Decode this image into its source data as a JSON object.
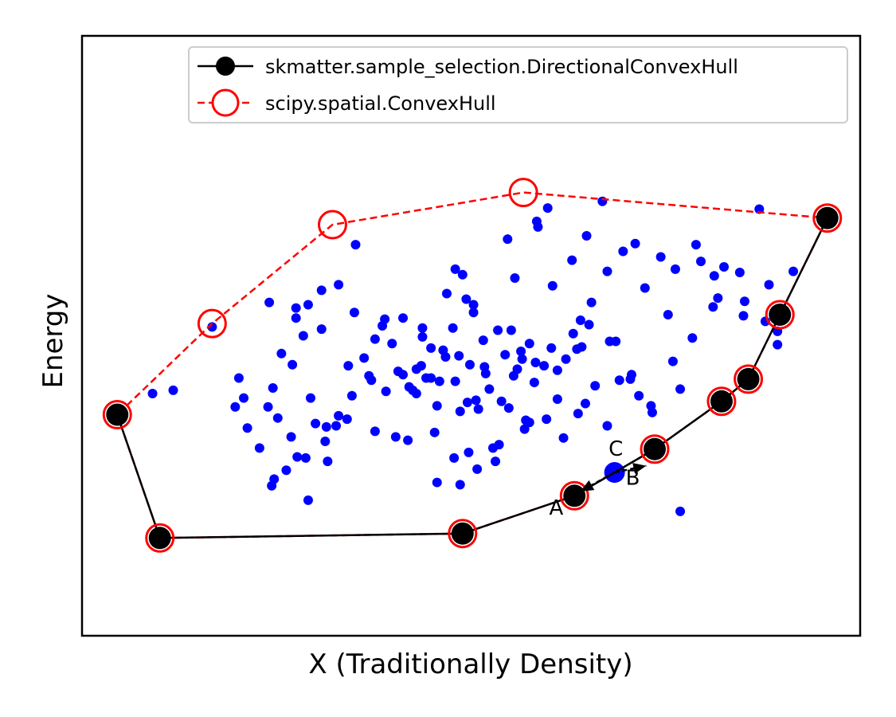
{
  "chart_data": {
    "type": "scatter",
    "title": "",
    "xlabel": "X (Traditionally Density)",
    "ylabel": "Energy",
    "xlim": [
      -3.2,
      3.2
    ],
    "ylim": [
      -2.2,
      3.2
    ],
    "xticks": [],
    "yticks": [],
    "grid": false,
    "legend_placement": "upper right",
    "colors": {
      "points": "#0000ff",
      "directional_hull": "#000000",
      "convex_hull": "#ff0000"
    },
    "legend": [
      {
        "label": "skmatter.sample_selection.DirectionalConvexHull",
        "style": "solid-line-black-filled-marker"
      },
      {
        "label": "scipy.spatial.ConvexHull",
        "style": "dashed-line-red-open-marker"
      }
    ],
    "series": [
      {
        "name": "skmatter.sample_selection.DirectionalConvexHull",
        "x": [
          -2.91,
          -2.56,
          -0.07,
          0.85,
          1.51,
          2.06,
          2.28,
          2.54,
          2.93
        ],
        "y": [
          -0.21,
          -1.32,
          -1.28,
          -0.94,
          -0.52,
          -0.09,
          0.11,
          0.69,
          1.56
        ]
      },
      {
        "name": "scipy.spatial.ConvexHull",
        "x": [
          -2.91,
          -2.56,
          -0.07,
          0.85,
          1.51,
          2.06,
          2.28,
          2.54,
          2.93,
          0.43,
          -1.14,
          -2.13,
          -2.91
        ],
        "y": [
          -0.21,
          -1.32,
          -1.28,
          -0.94,
          -0.52,
          -0.09,
          0.11,
          0.69,
          1.56,
          1.79,
          1.5,
          0.61,
          -0.21
        ]
      }
    ],
    "points": {
      "x": [
        -2.62,
        -2.45,
        -2.13,
        -1.91,
        -1.94,
        -1.84,
        -1.64,
        -1.59,
        -1.47,
        -1.38,
        -1.34,
        -1.44,
        -1.56,
        -1.23,
        -1.09,
        -1.01,
        -1.2,
        -1.43,
        -0.96,
        -0.71,
        -0.4,
        -0.04,
        -0.13,
        0.36,
        0.55,
        0.83,
        1.08,
        1.12,
        0.3,
        -0.2,
        0.02,
        0.22,
        -0.33,
        -0.56,
        -0.79,
        -1.18,
        -1.62,
        -1.74,
        -1.11,
        -0.88,
        0.67,
        1.35,
        1.62,
        1.85,
        1.99,
        2.08,
        2.25,
        2.37,
        2.45,
        2.65,
        2.52,
        0.54,
        0.63,
        -0.07,
        -0.95,
        -1.66,
        -1.32,
        0.95,
        1.25,
        1.68,
        0.9,
        -0.23,
        0.1,
        -0.4,
        -0.79,
        -0.6,
        -0.45,
        -0.1,
        0.15,
        0.35,
        0.66,
        0.84,
        0.99,
        1.14,
        1.31,
        -0.28,
        -0.51,
        -1.02,
        -0.52,
        -0.02,
        0.48,
        0.76,
        1.48,
        1.66,
        1.82,
        2.24,
        2.52,
        0.2,
        -0.28,
        -1.34,
        0.88,
        0.44,
        -0.7,
        -1.28,
        -0.84,
        0.11,
        0.31,
        1.02,
        0.71,
        1.38,
        0.05,
        -0.09,
        -0.14,
        0.18,
        0.25,
        0.06,
        -0.33,
        -0.41,
        -0.65,
        -0.73,
        -0.56,
        0.02,
        0.33,
        0.48,
        0.6,
        0.52,
        -0.09,
        0.78,
        0.91,
        1.22,
        0.71,
        0.45,
        -0.21,
        -0.15,
        -0.98,
        -1.09,
        -1.19,
        -1.48,
        -1.67,
        -1.63,
        -1.36,
        -1.52,
        -1.87,
        1.12,
        1.49,
        1.72,
        -0.26,
        -0.01,
        0.28,
        0.42,
        0.87,
        0.97,
        0.53,
        0.12,
        -0.37,
        -0.62,
        -0.3,
        0.04,
        0.62,
        0.94,
        1.19,
        1.32,
        0.41,
        -0.45,
        -0.82,
        -1.23,
        -1.44,
        1.43,
        1.56,
        2.21,
        2.0,
        2.42,
        2.03,
        1.89,
        1.72,
        -0.48,
        -0.13,
        0.23,
        -0.03,
        0.38
      ],
      "y": [
        -0.02,
        0.01,
        0.58,
        0.12,
        -0.14,
        -0.33,
        -0.85,
        -0.24,
        0.24,
        0.5,
        0.78,
        0.66,
        0.34,
        0.91,
        0.96,
        0.23,
        -0.45,
        -0.59,
        0.71,
        0.65,
        0.49,
        0.83,
        1.1,
        1.02,
        1.48,
        1.18,
        1.71,
        1.08,
        1.37,
        0.88,
        0.78,
        0.55,
        0.39,
        0.15,
        -0.36,
        -0.63,
        -0.79,
        -0.51,
        -0.31,
        0.3,
        0.95,
        1.33,
        0.69,
        1.32,
        0.76,
        1.12,
        0.81,
        1.64,
        0.96,
        1.08,
        0.42,
        1.53,
        1.65,
        1.05,
        1.32,
        0.8,
        -0.06,
        1.4,
        1.26,
        1.1,
        0.64,
        0.37,
        0.46,
        0.57,
        0.47,
        0.18,
        -0.02,
        0.32,
        0.02,
        0.14,
        0.39,
        0.52,
        0.8,
        0.45,
        0.11,
        -0.13,
        0.04,
        -0.25,
        -0.44,
        -0.55,
        -0.28,
        -0.42,
        -0.13,
        0.27,
        0.48,
        0.68,
        0.54,
        -0.63,
        -0.82,
        -0.98,
        -0.2,
        -0.34,
        0.0,
        -0.29,
        0.14,
        0.22,
        -0.15,
        0.05,
        -0.07,
        -0.04,
        -0.7,
        -0.84,
        -0.6,
        -0.51,
        -0.09,
        -0.16,
        0.12,
        0.23,
        0.43,
        0.59,
        0.66,
        0.71,
        0.55,
        0.43,
        0.23,
        0.08,
        -0.18,
        0.29,
        0.4,
        0.1,
        0.19,
        -0.26,
        0.31,
        0.57,
        -0.04,
        -0.22,
        -0.32,
        -0.41,
        -0.14,
        0.03,
        -0.6,
        -0.71,
        -0.06,
        -0.31,
        -0.19,
        0.02,
        0.09,
        0.24,
        0.33,
        0.29,
        0.38,
        0.6,
        0.26,
        0.16,
        0.12,
        -0.41,
        -0.37,
        -0.08,
        -0.25,
        -0.11,
        0.45,
        0.15,
        0.36,
        0.2,
        0.1,
        0.56,
        0.75,
        0.93,
        1.21,
        1.07,
        1.04,
        0.63,
        0.84,
        1.17,
        -1.08,
        0.01,
        0.09,
        -0.48,
        -0.1,
        0.2
      ],
      "highlight": {
        "x": 1.18,
        "y": -0.73
      }
    },
    "annotations": [
      {
        "text": "A",
        "x": 0.7,
        "y": -1.11
      },
      {
        "text": "B",
        "x": 1.33,
        "y": -0.84
      },
      {
        "text": "C",
        "x": 1.19,
        "y": -0.58
      }
    ],
    "arrows": [
      {
        "from_x": 1.18,
        "from_y": -0.73,
        "to_x": 0.9,
        "to_y": -0.9
      },
      {
        "from_x": 1.18,
        "from_y": -0.73,
        "to_x": 1.44,
        "to_y": -0.67
      }
    ]
  }
}
